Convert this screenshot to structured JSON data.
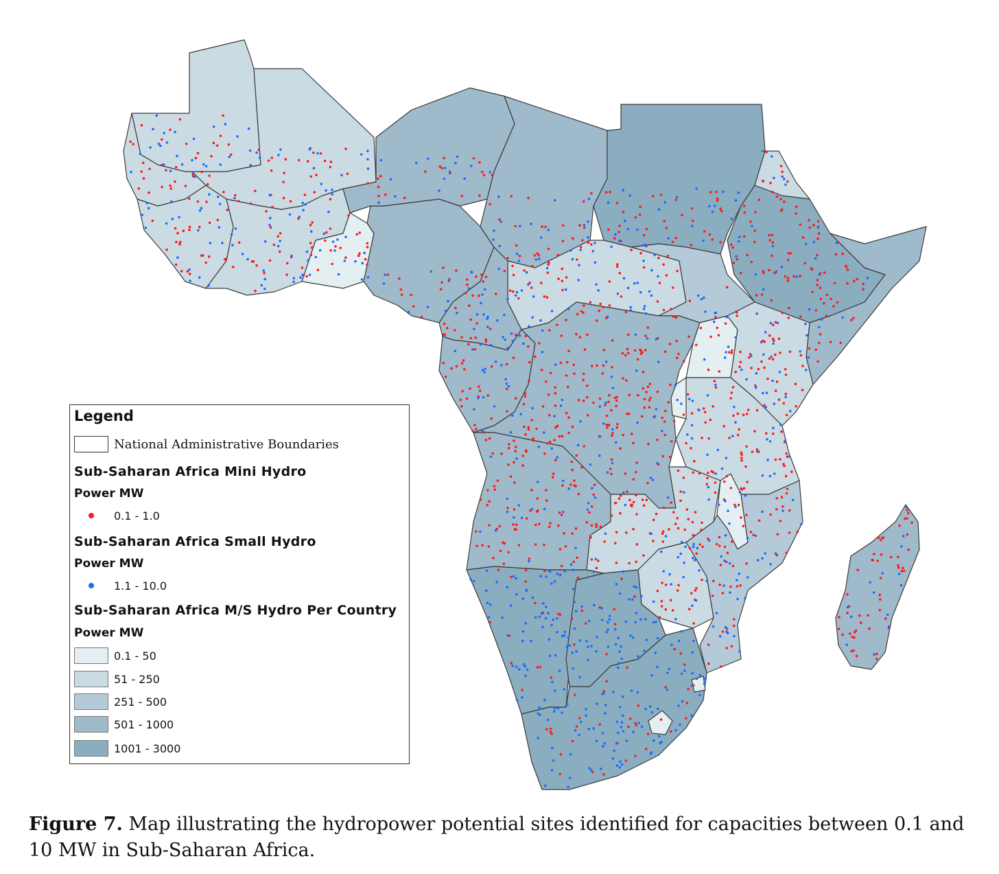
{
  "legend": {
    "title": "Legend",
    "boundaries_label": "National Administrative Boundaries",
    "mini_hydro": {
      "heading": "Sub-Saharan Africa Mini Hydro",
      "unit": "Power MW",
      "range": "0.1 - 1.0",
      "color": "#ff1a1a"
    },
    "small_hydro": {
      "heading": "Sub-Saharan Africa Small Hydro",
      "unit": "Power MW",
      "range": "1.1 - 10.0",
      "color": "#1a6cff"
    },
    "per_country": {
      "heading": "Sub-Saharan Africa M/S Hydro Per Country",
      "unit": "Power MW",
      "classes": [
        {
          "label": "0.1 - 50",
          "color": "#e4eff2"
        },
        {
          "label": "51 - 250",
          "color": "#cbdbe4"
        },
        {
          "label": "251 - 500",
          "color": "#b5cad9"
        },
        {
          "label": "501 - 1000",
          "color": "#9fbacb"
        },
        {
          "label": "1001 - 3000",
          "color": "#8aadc0"
        }
      ]
    }
  },
  "caption": {
    "label": "Figure 7.",
    "text": " Map illustrating the hydropower potential sites identified for capacities between 0.1 and 10 MW in Sub-Saharan Africa."
  }
}
